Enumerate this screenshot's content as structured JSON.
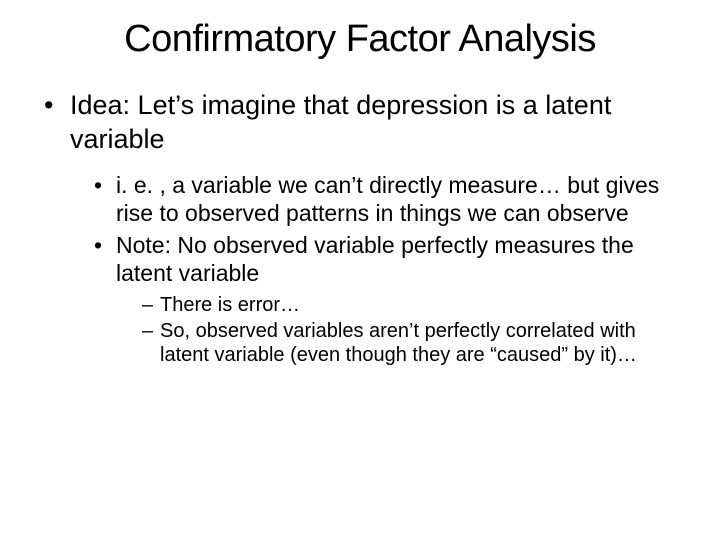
{
  "title": "Confirmatory Factor Analysis",
  "bullets": {
    "l1_0": "Idea:  Let’s imagine that depression is a latent variable",
    "l2_0": "i. e. , a variable we can’t directly measure… but gives rise to observed patterns in things we can observe",
    "l2_1": "Note:  No observed variable perfectly measures the latent variable",
    "l3_0": "There is error…",
    "l3_1": "So, observed variables aren’t perfectly correlated with latent variable (even though they are “caused” by it)…"
  },
  "colors": {
    "background": "#ffffff",
    "text": "#000000"
  },
  "typography": {
    "title_fontsize": 38,
    "l1_fontsize": 27,
    "l2_fontsize": 23,
    "l3_fontsize": 20,
    "font_family": "Arial"
  }
}
